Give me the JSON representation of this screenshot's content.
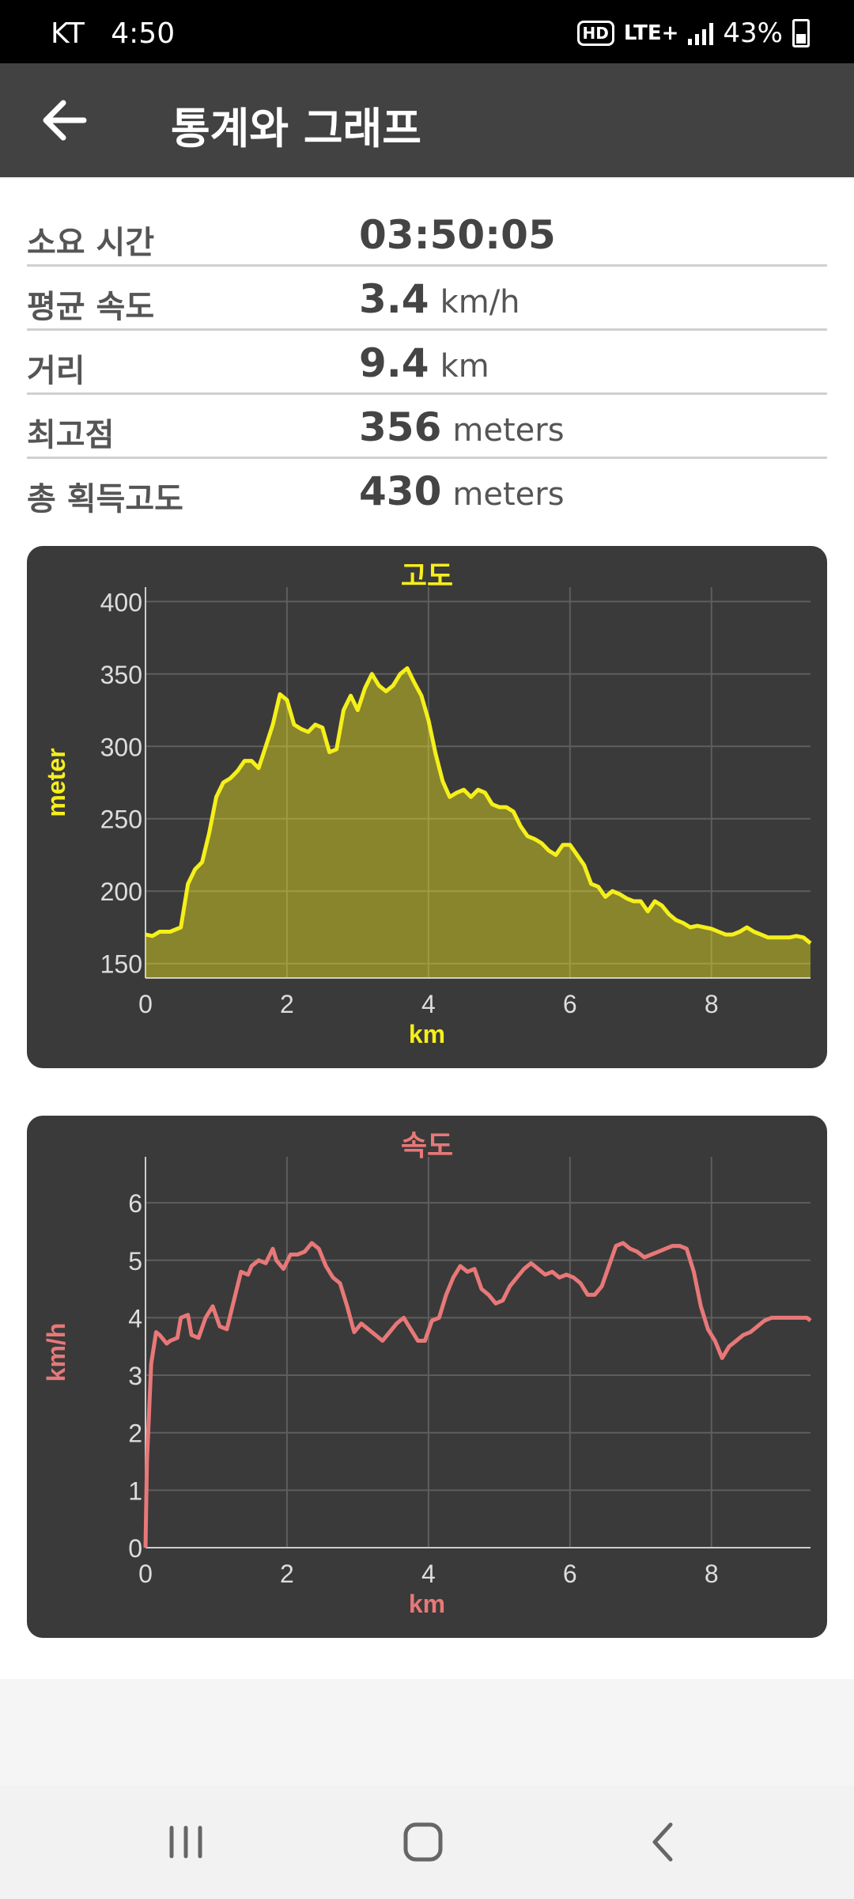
{
  "status_bar": {
    "carrier": "KT",
    "time": "4:50",
    "hd": "HD",
    "network": "LTE+",
    "battery": "43%"
  },
  "header": {
    "title": "통계와 그래프"
  },
  "stats": [
    {
      "label": "소요 시간",
      "value": "03:50:05",
      "unit": ""
    },
    {
      "label": "평균 속도",
      "value": "3.4",
      "unit": "km/h"
    },
    {
      "label": "거리",
      "value": "9.4",
      "unit": "km"
    },
    {
      "label": "최고점",
      "value": "356",
      "unit": "meters"
    },
    {
      "label": "총 획득고도",
      "value": "430",
      "unit": "meters"
    }
  ],
  "colors": {
    "altitude": "#f5ef1b",
    "speed": "#e87878",
    "chart_bg": "#3a3a3a",
    "tick": "#dddddd",
    "grid": "#5e5e5e"
  },
  "chart_data": [
    {
      "type": "area",
      "title": "고도",
      "xlabel": "km",
      "ylabel": "meter",
      "xlim": [
        0,
        9.4
      ],
      "ylim": [
        140,
        410
      ],
      "xticks": [
        0,
        2,
        4,
        6,
        8
      ],
      "yticks": [
        150,
        200,
        250,
        300,
        350,
        400
      ],
      "grid": true,
      "x": [
        0,
        0.1,
        0.2,
        0.35,
        0.5,
        0.6,
        0.7,
        0.8,
        0.9,
        1.0,
        1.1,
        1.2,
        1.3,
        1.4,
        1.5,
        1.6,
        1.7,
        1.8,
        1.9,
        2.0,
        2.1,
        2.2,
        2.3,
        2.4,
        2.5,
        2.6,
        2.7,
        2.8,
        2.9,
        3.0,
        3.1,
        3.2,
        3.3,
        3.4,
        3.5,
        3.6,
        3.7,
        3.8,
        3.9,
        4.0,
        4.1,
        4.2,
        4.3,
        4.4,
        4.5,
        4.6,
        4.7,
        4.8,
        4.9,
        5.0,
        5.1,
        5.2,
        5.3,
        5.4,
        5.5,
        5.6,
        5.7,
        5.8,
        5.9,
        6.0,
        6.1,
        6.2,
        6.3,
        6.4,
        6.5,
        6.6,
        6.7,
        6.8,
        6.9,
        7.0,
        7.1,
        7.2,
        7.3,
        7.4,
        7.5,
        7.6,
        7.7,
        7.8,
        7.9,
        8.0,
        8.1,
        8.2,
        8.3,
        8.4,
        8.5,
        8.6,
        8.7,
        8.8,
        8.9,
        9.0,
        9.1,
        9.2,
        9.3,
        9.4
      ],
      "y": [
        170,
        169,
        172,
        172,
        175,
        205,
        215,
        220,
        240,
        265,
        275,
        278,
        283,
        290,
        290,
        285,
        300,
        315,
        336,
        332,
        315,
        312,
        310,
        315,
        313,
        296,
        298,
        325,
        335,
        325,
        340,
        350,
        342,
        338,
        342,
        350,
        354,
        344,
        335,
        318,
        295,
        276,
        265,
        268,
        270,
        265,
        270,
        268,
        260,
        258,
        258,
        255,
        245,
        238,
        236,
        233,
        228,
        225,
        232,
        232,
        225,
        218,
        205,
        203,
        196,
        200,
        198,
        195,
        193,
        193,
        186,
        193,
        190,
        184,
        180,
        178,
        175,
        176,
        175,
        174,
        172,
        170,
        170,
        172,
        175,
        172,
        170,
        168,
        168,
        168,
        168,
        169,
        168,
        164
      ]
    },
    {
      "type": "line",
      "title": "속도",
      "xlabel": "km",
      "ylabel": "km/h",
      "xlim": [
        0,
        9.4
      ],
      "ylim": [
        0,
        6.8
      ],
      "xticks": [
        0,
        2,
        4,
        6,
        8
      ],
      "yticks": [
        0,
        1,
        2,
        3,
        4,
        5,
        6
      ],
      "grid": true,
      "x": [
        0,
        0.02,
        0.08,
        0.15,
        0.2,
        0.3,
        0.35,
        0.45,
        0.5,
        0.6,
        0.65,
        0.75,
        0.85,
        0.95,
        1.05,
        1.15,
        1.25,
        1.35,
        1.45,
        1.5,
        1.6,
        1.7,
        1.8,
        1.85,
        1.95,
        2.05,
        2.15,
        2.25,
        2.35,
        2.45,
        2.55,
        2.65,
        2.75,
        2.85,
        2.95,
        3.05,
        3.15,
        3.25,
        3.35,
        3.45,
        3.55,
        3.65,
        3.75,
        3.85,
        3.95,
        4.05,
        4.15,
        4.25,
        4.35,
        4.45,
        4.55,
        4.65,
        4.75,
        4.85,
        4.95,
        5.05,
        5.15,
        5.25,
        5.35,
        5.45,
        5.55,
        5.65,
        5.75,
        5.85,
        5.95,
        6.05,
        6.15,
        6.25,
        6.35,
        6.45,
        6.55,
        6.65,
        6.75,
        6.85,
        6.95,
        7.05,
        7.15,
        7.25,
        7.35,
        7.45,
        7.55,
        7.65,
        7.75,
        7.85,
        7.95,
        8.05,
        8.15,
        8.25,
        8.35,
        8.45,
        8.55,
        8.65,
        8.75,
        8.85,
        8.95,
        9.05,
        9.15,
        9.25,
        9.35,
        9.4
      ],
      "y": [
        0,
        1.5,
        3.2,
        3.75,
        3.7,
        3.55,
        3.6,
        3.65,
        4.0,
        4.05,
        3.7,
        3.65,
        4.0,
        4.2,
        3.85,
        3.8,
        4.3,
        4.8,
        4.75,
        4.9,
        5.0,
        4.95,
        5.2,
        5.0,
        4.85,
        5.1,
        5.1,
        5.15,
        5.3,
        5.2,
        4.9,
        4.7,
        4.6,
        4.2,
        3.75,
        3.9,
        3.8,
        3.7,
        3.6,
        3.75,
        3.9,
        4.0,
        3.8,
        3.6,
        3.6,
        3.95,
        4.0,
        4.4,
        4.7,
        4.9,
        4.8,
        4.85,
        4.5,
        4.4,
        4.25,
        4.3,
        4.55,
        4.7,
        4.85,
        4.95,
        4.85,
        4.75,
        4.8,
        4.7,
        4.75,
        4.7,
        4.6,
        4.4,
        4.4,
        4.55,
        4.9,
        5.25,
        5.3,
        5.2,
        5.15,
        5.05,
        5.1,
        5.15,
        5.2,
        5.25,
        5.25,
        5.2,
        4.8,
        4.2,
        3.8,
        3.6,
        3.3,
        3.5,
        3.6,
        3.7,
        3.75,
        3.85,
        3.95,
        4.0,
        4.0,
        4.0,
        4.0,
        4.0,
        4.0,
        3.95
      ]
    }
  ],
  "nav": {
    "recents": "recents",
    "home": "home",
    "back": "back"
  }
}
